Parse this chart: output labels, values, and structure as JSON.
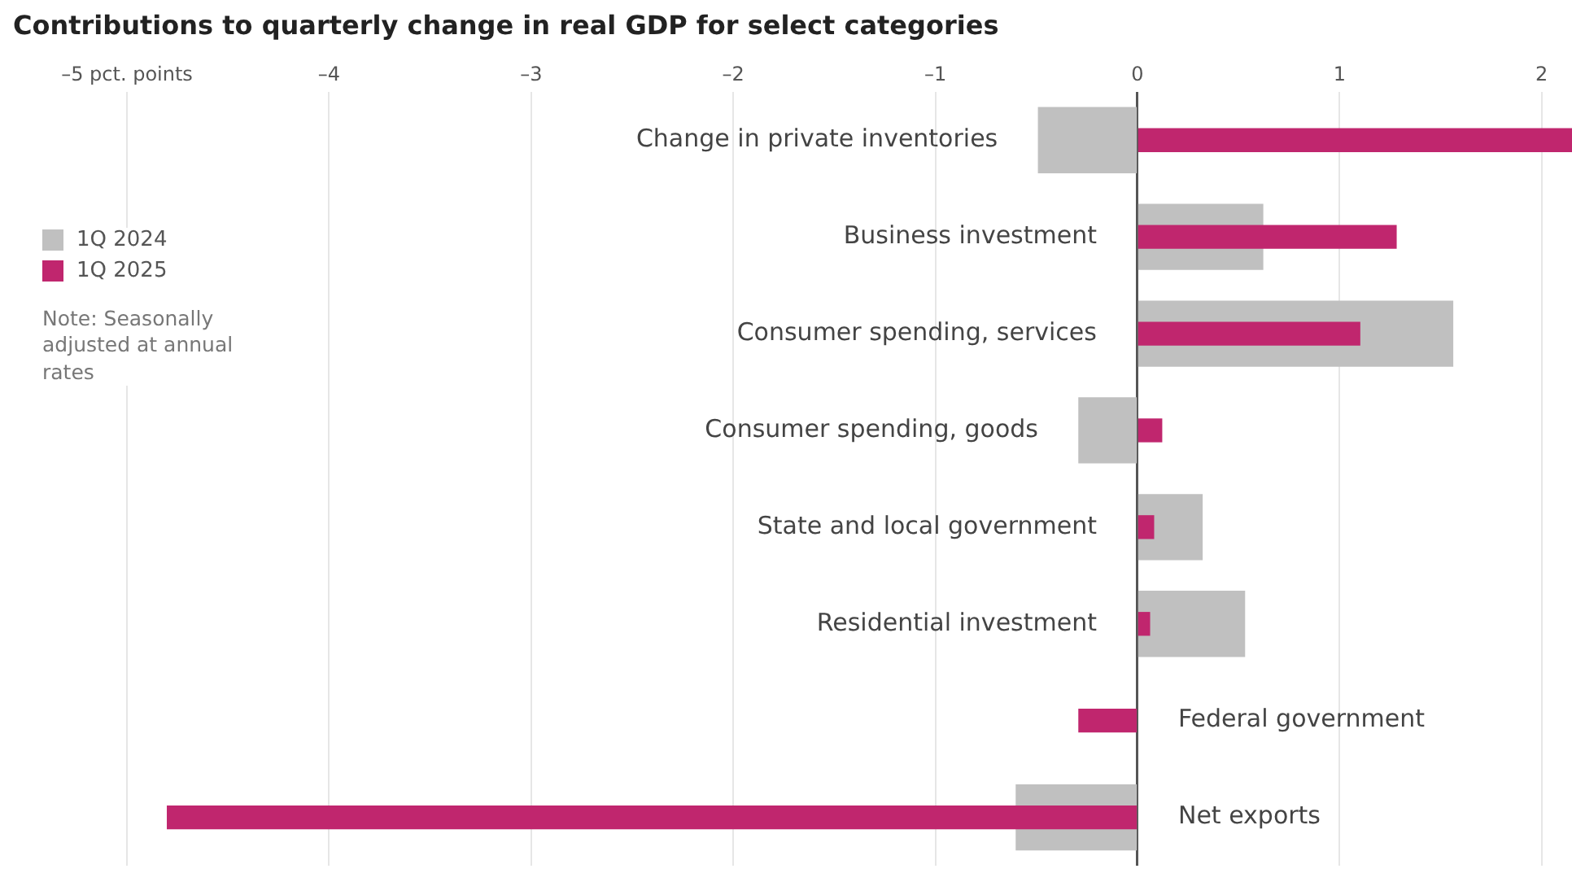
{
  "chart_data": {
    "type": "bar",
    "orientation": "horizontal",
    "title": "Contributions to quarterly change in real GDP for select categories",
    "categories": [
      "Change in private inventories",
      "Business investment",
      "Consumer spending, services",
      "Consumer spending, goods",
      "State and local government",
      "Residential investment",
      "Federal government",
      "Net exports"
    ],
    "series": [
      {
        "name": "1Q 2024",
        "color": "#c0c0c0",
        "values": [
          -0.49,
          0.62,
          1.56,
          -0.29,
          0.32,
          0.53,
          null,
          -0.6
        ]
      },
      {
        "name": "1Q 2025",
        "color": "#c0266e",
        "values": [
          2.15,
          1.28,
          1.1,
          0.12,
          0.08,
          0.06,
          -0.29,
          -4.8
        ]
      }
    ],
    "xlim": [
      -5,
      2.15
    ],
    "xticks": [
      {
        "value": -5,
        "label": "–5 pct. points"
      },
      {
        "value": -4,
        "label": "–4"
      },
      {
        "value": -3,
        "label": "–3"
      },
      {
        "value": -2,
        "label": "–2"
      },
      {
        "value": -1,
        "label": "–1"
      },
      0,
      1,
      2
    ],
    "grid": "x",
    "legend": "left",
    "annotations": [
      "Note: Seasonally adjusted at annual rates"
    ]
  }
}
